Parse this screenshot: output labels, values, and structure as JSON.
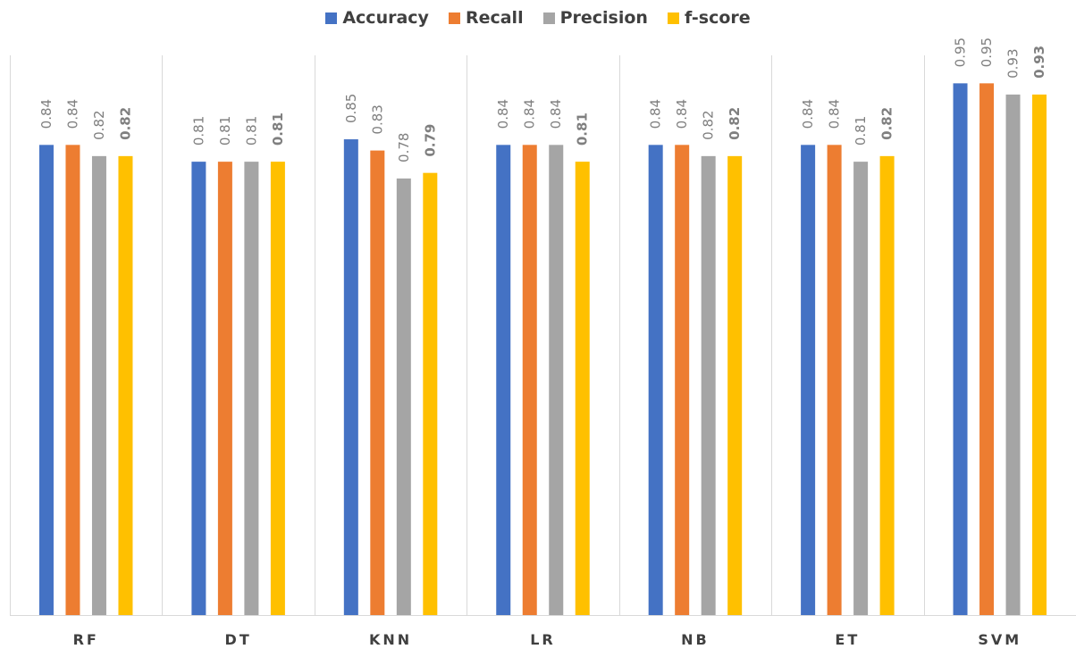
{
  "chart_data": {
    "type": "bar",
    "categories": [
      "RF",
      "DT",
      "KNN",
      "LR",
      "NB",
      "ET",
      "SVM"
    ],
    "series": [
      {
        "name": "Accuracy",
        "color": "#4472c4",
        "values": [
          0.84,
          0.81,
          0.85,
          0.84,
          0.84,
          0.84,
          0.95
        ],
        "labels": [
          "0.84",
          "0.81",
          "0.85",
          "0.84",
          "0.84",
          "0.84",
          "0.95"
        ],
        "bold_labels": false
      },
      {
        "name": "Recall",
        "color": "#ed7d31",
        "values": [
          0.84,
          0.81,
          0.83,
          0.84,
          0.84,
          0.84,
          0.95
        ],
        "labels": [
          "0.84",
          "0.81",
          "0.83",
          "0.84",
          "0.84",
          "0.84",
          "0.95"
        ],
        "bold_labels": false
      },
      {
        "name": "Precision",
        "color": "#a5a5a5",
        "values": [
          0.82,
          0.81,
          0.78,
          0.84,
          0.82,
          0.81,
          0.93
        ],
        "labels": [
          "0.82",
          "0.81",
          "0.78",
          "0.84",
          "0.82",
          "0.81",
          "0.93"
        ],
        "bold_labels": false
      },
      {
        "name": "f-score",
        "color": "#ffc000",
        "values": [
          0.82,
          0.81,
          0.79,
          0.81,
          0.82,
          0.82,
          0.93
        ],
        "labels": [
          "0.82",
          "0.81",
          "0.79",
          "0.81",
          "0.82",
          "0.82",
          "0.93"
        ],
        "bold_labels": true
      }
    ],
    "ylim": [
      0,
      1
    ],
    "grid": "vertical category separators",
    "legend": "top-center"
  }
}
